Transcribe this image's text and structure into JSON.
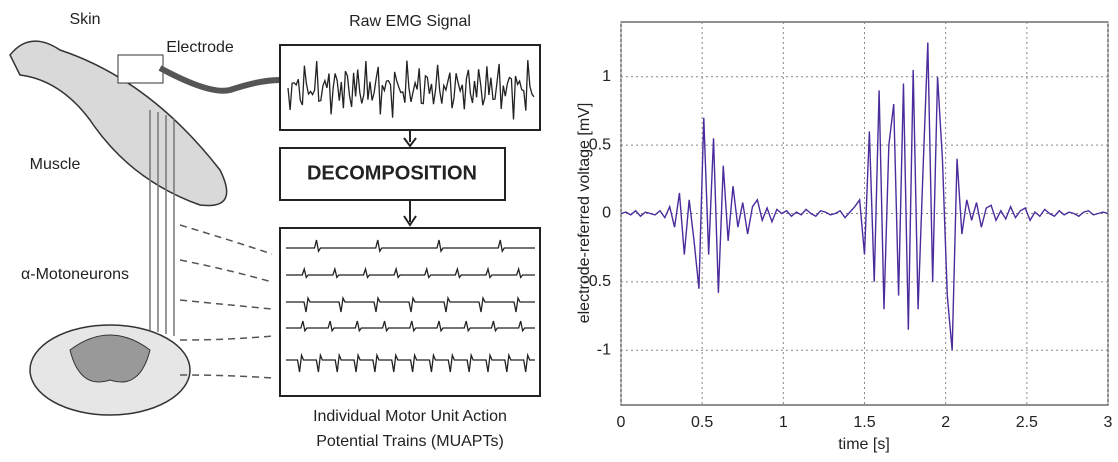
{
  "diagram": {
    "skin": "Skin",
    "electrode": "Electrode",
    "muscle": "Muscle",
    "motoneurons": "α-Motoneurons",
    "raw_title": "Raw EMG Signal",
    "decomposition": "DECOMPOSITION",
    "caption": [
      "Individual Motor Unit Action",
      "Potential Trains (MUAPTs)"
    ]
  },
  "chart_data": {
    "type": "line",
    "xlabel": "time [s]",
    "ylabel": "electrode-referred voltage [mV]",
    "color": "#4b2c9c",
    "grid": true,
    "xlim": [
      0,
      3
    ],
    "ylim": [
      -1.4,
      1.4
    ],
    "xticks": [
      0,
      0.5,
      1,
      1.5,
      2,
      2.5,
      3
    ],
    "yticks": [
      -1,
      -0.5,
      0,
      0.5,
      1
    ],
    "x": [
      0,
      0.03,
      0.06,
      0.09,
      0.12,
      0.15,
      0.18,
      0.21,
      0.24,
      0.27,
      0.3,
      0.33,
      0.36,
      0.39,
      0.42,
      0.45,
      0.48,
      0.51,
      0.54,
      0.57,
      0.6,
      0.63,
      0.66,
      0.69,
      0.72,
      0.75,
      0.78,
      0.81,
      0.84,
      0.87,
      0.9,
      0.93,
      0.96,
      0.99,
      1.02,
      1.05,
      1.08,
      1.11,
      1.14,
      1.17,
      1.2,
      1.23,
      1.26,
      1.29,
      1.32,
      1.35,
      1.38,
      1.41,
      1.44,
      1.47,
      1.5,
      1.53,
      1.56,
      1.59,
      1.62,
      1.65,
      1.68,
      1.71,
      1.74,
      1.77,
      1.8,
      1.83,
      1.86,
      1.89,
      1.92,
      1.95,
      1.98,
      2.01,
      2.04,
      2.07,
      2.1,
      2.13,
      2.16,
      2.19,
      2.22,
      2.25,
      2.28,
      2.31,
      2.34,
      2.37,
      2.4,
      2.43,
      2.46,
      2.49,
      2.52,
      2.55,
      2.58,
      2.61,
      2.64,
      2.67,
      2.7,
      2.73,
      2.76,
      2.79,
      2.82,
      2.85,
      2.88,
      2.91,
      2.94,
      2.97,
      3.0
    ],
    "values": [
      0,
      0.01,
      -0.01,
      0.02,
      -0.02,
      0.01,
      0,
      -0.01,
      0.02,
      -0.03,
      0.05,
      -0.1,
      0.15,
      -0.3,
      0.1,
      -0.2,
      -0.55,
      0.7,
      -0.3,
      0.55,
      -0.58,
      0.35,
      -0.2,
      0.2,
      -0.1,
      0.08,
      -0.15,
      0.05,
      0.1,
      -0.05,
      0.04,
      -0.06,
      0.03,
      0,
      0.02,
      -0.02,
      0.01,
      -0.01,
      0.03,
      0,
      -0.02,
      0.02,
      0.01,
      -0.01,
      0,
      0.02,
      -0.03,
      0.01,
      0.05,
      0.1,
      -0.3,
      0.6,
      -0.5,
      0.9,
      -0.7,
      0.5,
      0.8,
      -0.6,
      0.95,
      -0.85,
      1.05,
      -0.7,
      0.3,
      1.25,
      -0.5,
      1.0,
      0.4,
      -0.6,
      -1.0,
      0.4,
      -0.15,
      0.1,
      -0.05,
      0.08,
      -0.1,
      0.04,
      0.06,
      -0.05,
      0.02,
      -0.04,
      0.05,
      -0.03,
      0.02,
      0.04,
      -0.05,
      0.01,
      -0.02,
      0.03,
      0,
      -0.02,
      0.02,
      -0.01,
      0.01,
      0,
      -0.02,
      0.01,
      0.02,
      -0.01,
      0,
      0.01,
      0
    ]
  }
}
